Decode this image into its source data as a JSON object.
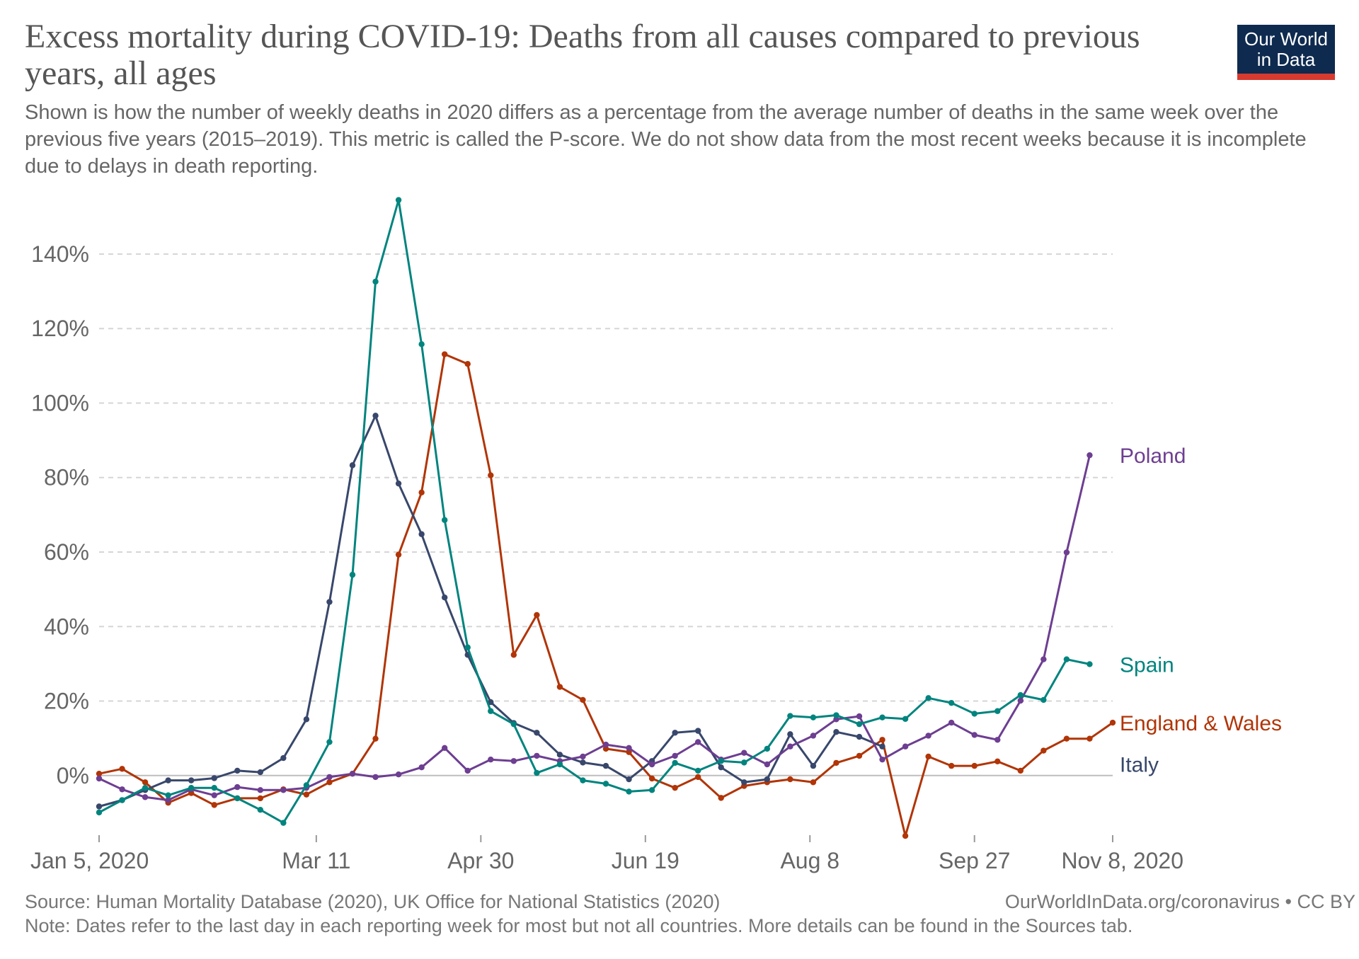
{
  "title": "Excess mortality during COVID-19: Deaths from all causes compared to previous years, all ages",
  "subtitle": "Shown is how the number of weekly deaths in 2020 differs as a percentage from the average number of deaths in the same week over the previous five years (2015–2019). This metric is called the P-score. We do not show data from the most recent weeks because it is incomplete due to delays in death reporting.",
  "logo": {
    "line1": "Our World",
    "line2": "in Data",
    "bg_color": "#0e2a4f",
    "accent_color": "#d73a2f"
  },
  "footer": {
    "source": "Source: Human Mortality Database (2020), UK Office for National Statistics (2020)",
    "credit": "OurWorldInData.org/coronavirus • CC BY",
    "note": "Note: Dates refer to the last day in each reporting week for most but not all countries. More details can be found in the Sources tab."
  },
  "chart_data": {
    "type": "line",
    "title": "Excess mortality during COVID-19: Deaths from all causes compared to previous years, all ages",
    "xlabel": "",
    "ylabel": "",
    "x_axis": {
      "type": "date",
      "start": "2020-01-05",
      "end": "2020-11-08",
      "tick_labels": [
        "Jan 5, 2020",
        "Mar 11",
        "Apr 30",
        "Jun 19",
        "Aug 8",
        "Sep 27",
        "Nov 8, 2020"
      ],
      "tick_dates": [
        "2020-01-05",
        "2020-03-11",
        "2020-04-30",
        "2020-06-19",
        "2020-08-08",
        "2020-09-27",
        "2020-11-08"
      ]
    },
    "y_axis": {
      "min": -16,
      "max": 155,
      "ticks": [
        0,
        20,
        40,
        60,
        80,
        100,
        120,
        140
      ],
      "tick_labels": [
        "0%",
        "20%",
        "40%",
        "60%",
        "80%",
        "100%",
        "120%",
        "140%"
      ]
    },
    "grid": "horizontal dashed",
    "legend": "labels at line ends (right)",
    "series": [
      {
        "name": "England & Wales",
        "color": "#b13507",
        "points": [
          [
            "2020-01-05",
            0.5
          ],
          [
            "2020-01-12",
            1.8
          ],
          [
            "2020-01-19",
            -1.8
          ],
          [
            "2020-01-26",
            -7.3
          ],
          [
            "2020-02-02",
            -4.7
          ],
          [
            "2020-02-09",
            -7.9
          ],
          [
            "2020-02-16",
            -6.1
          ],
          [
            "2020-02-23",
            -6.1
          ],
          [
            "2020-03-01",
            -3.7
          ],
          [
            "2020-03-08",
            -5.1
          ],
          [
            "2020-03-15",
            -1.8
          ],
          [
            "2020-03-22",
            0.5
          ],
          [
            "2020-03-29",
            9.9
          ],
          [
            "2020-04-05",
            59.3
          ],
          [
            "2020-04-12",
            76.0
          ],
          [
            "2020-04-19",
            113.1
          ],
          [
            "2020-04-26",
            110.5
          ],
          [
            "2020-05-03",
            80.6
          ],
          [
            "2020-05-10",
            32.4
          ],
          [
            "2020-05-17",
            43.1
          ],
          [
            "2020-05-24",
            23.8
          ],
          [
            "2020-05-31",
            20.3
          ],
          [
            "2020-06-07",
            7.2
          ],
          [
            "2020-06-14",
            6.3
          ],
          [
            "2020-06-21",
            -0.8
          ],
          [
            "2020-06-28",
            -3.3
          ],
          [
            "2020-07-05",
            -0.4
          ],
          [
            "2020-07-12",
            -6.0
          ],
          [
            "2020-07-19",
            -2.8
          ],
          [
            "2020-07-26",
            -1.8
          ],
          [
            "2020-08-02",
            -1.0
          ],
          [
            "2020-08-09",
            -1.8
          ],
          [
            "2020-08-16",
            3.4
          ],
          [
            "2020-08-23",
            5.3
          ],
          [
            "2020-08-30",
            9.6
          ],
          [
            "2020-09-06",
            -16.2
          ],
          [
            "2020-09-13",
            5.1
          ],
          [
            "2020-09-20",
            2.6
          ],
          [
            "2020-09-27",
            2.6
          ],
          [
            "2020-10-04",
            3.8
          ],
          [
            "2020-10-11",
            1.3
          ],
          [
            "2020-10-18",
            6.7
          ],
          [
            "2020-10-25",
            9.9
          ],
          [
            "2020-11-01",
            9.9
          ],
          [
            "2020-11-08",
            14.2
          ]
        ]
      },
      {
        "name": "Italy",
        "color": "#38476b",
        "points": [
          [
            "2020-01-05",
            -8.3
          ],
          [
            "2020-01-12",
            -6.6
          ],
          [
            "2020-01-19",
            -3.9
          ],
          [
            "2020-01-26",
            -1.3
          ],
          [
            "2020-02-02",
            -1.3
          ],
          [
            "2020-02-09",
            -0.7
          ],
          [
            "2020-02-16",
            1.3
          ],
          [
            "2020-02-23",
            0.9
          ],
          [
            "2020-03-01",
            4.7
          ],
          [
            "2020-03-08",
            15.1
          ],
          [
            "2020-03-15",
            46.6
          ],
          [
            "2020-03-22",
            83.3
          ],
          [
            "2020-03-29",
            96.6
          ],
          [
            "2020-04-05",
            78.4
          ],
          [
            "2020-04-12",
            64.8
          ],
          [
            "2020-04-19",
            47.8
          ],
          [
            "2020-04-26",
            32.4
          ],
          [
            "2020-05-03",
            19.7
          ],
          [
            "2020-05-10",
            14.1
          ],
          [
            "2020-05-17",
            11.5
          ],
          [
            "2020-05-24",
            5.6
          ],
          [
            "2020-05-31",
            3.5
          ],
          [
            "2020-06-07",
            2.6
          ],
          [
            "2020-06-14",
            -1.0
          ],
          [
            "2020-06-21",
            3.9
          ],
          [
            "2020-06-28",
            11.5
          ],
          [
            "2020-07-05",
            12.0
          ],
          [
            "2020-07-12",
            2.2
          ],
          [
            "2020-07-19",
            -1.8
          ],
          [
            "2020-07-26",
            -1.0
          ],
          [
            "2020-08-02",
            11.1
          ],
          [
            "2020-08-09",
            2.6
          ],
          [
            "2020-08-16",
            11.7
          ],
          [
            "2020-08-23",
            10.4
          ],
          [
            "2020-08-30",
            7.8
          ]
        ]
      },
      {
        "name": "Poland",
        "color": "#6d3e91",
        "points": [
          [
            "2020-01-05",
            -0.8
          ],
          [
            "2020-01-12",
            -3.7
          ],
          [
            "2020-01-19",
            -5.8
          ],
          [
            "2020-01-26",
            -6.6
          ],
          [
            "2020-02-02",
            -3.7
          ],
          [
            "2020-02-09",
            -5.3
          ],
          [
            "2020-02-16",
            -3.1
          ],
          [
            "2020-02-23",
            -3.9
          ],
          [
            "2020-03-01",
            -3.9
          ],
          [
            "2020-03-08",
            -3.3
          ],
          [
            "2020-03-15",
            -0.4
          ],
          [
            "2020-03-22",
            0.5
          ],
          [
            "2020-03-29",
            -0.4
          ],
          [
            "2020-04-05",
            0.3
          ],
          [
            "2020-04-12",
            2.2
          ],
          [
            "2020-04-19",
            7.4
          ],
          [
            "2020-04-26",
            1.3
          ],
          [
            "2020-05-03",
            4.3
          ],
          [
            "2020-05-10",
            3.9
          ],
          [
            "2020-05-17",
            5.3
          ],
          [
            "2020-05-24",
            3.9
          ],
          [
            "2020-05-31",
            5.1
          ],
          [
            "2020-06-07",
            8.3
          ],
          [
            "2020-06-14",
            7.4
          ],
          [
            "2020-06-21",
            3.0
          ],
          [
            "2020-06-28",
            5.3
          ],
          [
            "2020-07-05",
            9.0
          ],
          [
            "2020-07-12",
            4.3
          ],
          [
            "2020-07-19",
            6.1
          ],
          [
            "2020-07-26",
            3.0
          ],
          [
            "2020-08-02",
            7.8
          ],
          [
            "2020-08-09",
            10.7
          ],
          [
            "2020-08-16",
            15.1
          ],
          [
            "2020-08-23",
            15.9
          ],
          [
            "2020-08-30",
            4.3
          ],
          [
            "2020-09-06",
            7.8
          ],
          [
            "2020-09-13",
            10.7
          ],
          [
            "2020-09-20",
            14.2
          ],
          [
            "2020-09-27",
            10.9
          ],
          [
            "2020-10-04",
            9.6
          ],
          [
            "2020-10-11",
            20.1
          ],
          [
            "2020-10-18",
            31.2
          ],
          [
            "2020-10-25",
            59.9
          ],
          [
            "2020-11-01",
            86.0
          ]
        ]
      },
      {
        "name": "Spain",
        "color": "#00847e",
        "points": [
          [
            "2020-01-05",
            -9.9
          ],
          [
            "2020-01-12",
            -6.6
          ],
          [
            "2020-01-19",
            -3.3
          ],
          [
            "2020-01-26",
            -5.3
          ],
          [
            "2020-02-02",
            -3.3
          ],
          [
            "2020-02-09",
            -3.3
          ],
          [
            "2020-02-16",
            -6.1
          ],
          [
            "2020-02-23",
            -9.2
          ],
          [
            "2020-03-01",
            -12.7
          ],
          [
            "2020-03-08",
            -2.6
          ],
          [
            "2020-03-15",
            9.0
          ],
          [
            "2020-03-22",
            53.9
          ],
          [
            "2020-03-29",
            132.6
          ],
          [
            "2020-04-05",
            154.5
          ],
          [
            "2020-04-12",
            115.8
          ],
          [
            "2020-04-19",
            68.6
          ],
          [
            "2020-04-26",
            34.4
          ],
          [
            "2020-05-03",
            17.3
          ],
          [
            "2020-05-10",
            13.8
          ],
          [
            "2020-05-17",
            0.7
          ],
          [
            "2020-05-24",
            3.0
          ],
          [
            "2020-05-31",
            -1.3
          ],
          [
            "2020-06-07",
            -2.2
          ],
          [
            "2020-06-14",
            -4.3
          ],
          [
            "2020-06-21",
            -3.9
          ],
          [
            "2020-06-28",
            3.4
          ],
          [
            "2020-07-05",
            1.3
          ],
          [
            "2020-07-12",
            3.9
          ],
          [
            "2020-07-19",
            3.5
          ],
          [
            "2020-07-26",
            7.2
          ],
          [
            "2020-08-02",
            16.0
          ],
          [
            "2020-08-09",
            15.6
          ],
          [
            "2020-08-16",
            16.2
          ],
          [
            "2020-08-23",
            13.8
          ],
          [
            "2020-08-30",
            15.6
          ],
          [
            "2020-09-06",
            15.2
          ],
          [
            "2020-09-13",
            20.8
          ],
          [
            "2020-09-20",
            19.5
          ],
          [
            "2020-09-27",
            16.6
          ],
          [
            "2020-10-04",
            17.3
          ],
          [
            "2020-10-11",
            21.6
          ],
          [
            "2020-10-18",
            20.3
          ],
          [
            "2020-10-25",
            31.2
          ],
          [
            "2020-11-01",
            29.9
          ]
        ]
      }
    ]
  }
}
